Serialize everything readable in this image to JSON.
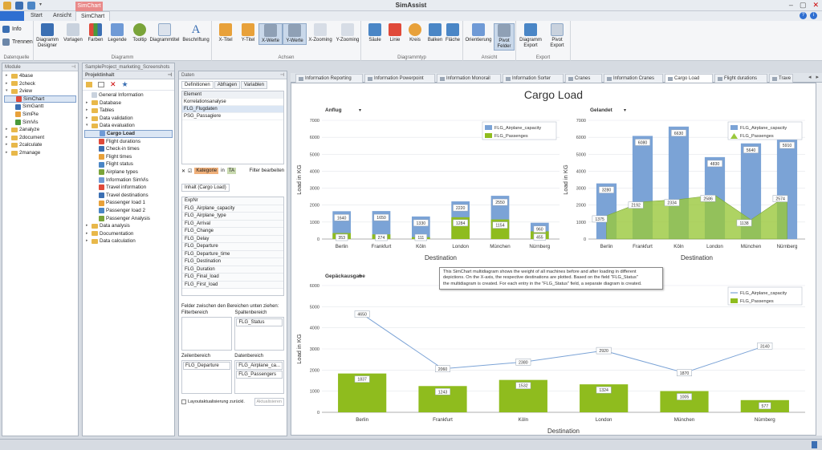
{
  "app": {
    "title": "SimAssist",
    "context_tab": "SimChart"
  },
  "tabs": [
    "Start",
    "Ansicht",
    "SimChart"
  ],
  "ribbon": {
    "groups": [
      {
        "label": "Datenquelle",
        "buttons": [
          "Info",
          "Trennen"
        ]
      },
      {
        "label": "Diagramm",
        "buttons": [
          "Diagramm Designer",
          "Vorlagen",
          "Farben",
          "Legende",
          "Tooltip",
          "Diagrammtitel",
          "Beschriftung"
        ]
      },
      {
        "label": "Achsen",
        "buttons": [
          "X-Titel",
          "Y-Titel",
          "X-Werte",
          "Y-Werte",
          "X-Zooming",
          "Y-Zooming"
        ]
      },
      {
        "label": "Diagrammtyp",
        "buttons": [
          "Säule",
          "Linie",
          "Kreis",
          "Balken",
          "Fläche"
        ]
      },
      {
        "label": "Ansicht",
        "buttons": [
          "Orientierung",
          "Pivot Felder"
        ]
      },
      {
        "label": "Export",
        "buttons": [
          "Diagramm Export",
          "Pivot Export"
        ]
      }
    ]
  },
  "module_panel": {
    "title": "Module",
    "items": [
      "4base",
      "2check",
      "2view",
      "SimChart",
      "SimGantt",
      "SimPie",
      "SimVis",
      "2analyze",
      "2document",
      "2calculate",
      "2manage"
    ]
  },
  "project_panel": {
    "header": "SampleProject_marketing_Screenshots",
    "title": "Projektinhalt",
    "items": [
      "General Information",
      "Database",
      "Tables",
      "Data validation",
      "Data evaluation",
      "Cargo Load",
      "Flight durations",
      "Check-in times",
      "Flight times",
      "Flight status",
      "Airplane types",
      "Information SimVis",
      "Travel information",
      "Travel destinations",
      "Passenger load 1",
      "Passenger load 2",
      "Passenger Analysis",
      "Data analysis",
      "Documentation",
      "Data calculation"
    ]
  },
  "data_panel": {
    "title": "Daten",
    "subtabs": [
      "Definitionen",
      "Abfragen",
      "Variablen"
    ],
    "element_header": "Element",
    "elements": [
      "Korrelationsanalyse",
      "FLG_Flugdaten",
      "PSG_Passagiere"
    ],
    "kategorie": "Kategorie",
    "in_label": "in",
    "filter_btn": "Filter bearbeiten",
    "inhalt_tab": "Inhalt (Cargo Load)",
    "fields": [
      "ExpNr",
      "FLG_Airplane_capacity",
      "FLG_Airplane_type",
      "FLG_Arrival",
      "FLG_Change",
      "FLG_Delay",
      "FLG_Departure",
      "FLG_Departure_time",
      "FLG_Destination",
      "FLG_Duration",
      "FLG_Final_load",
      "FLG_First_load"
    ],
    "drag_hint": "Felder zwischen den Bereichen unten ziehen:",
    "filterbereich": "Filterbereich",
    "spaltenbereich": "Spaltenbereich",
    "spalten_value": "FLG_Status",
    "zeilenbereich": "Zeilenbereich",
    "zeilen_value": "FLG_Departure",
    "datenbereich": "Datenbereich",
    "daten_values": [
      "FLG_Airplane_ca...",
      "FLG_Passengers"
    ],
    "layout_checkbox": "Layoutaktualisierung zurückl.",
    "aktualisieren": "Aktualisieren"
  },
  "doc_tabs": [
    "Information Reporting",
    "Information Powerpoint",
    "Information Monorail",
    "Information Sorter",
    "Cranes",
    "Information Cranes",
    "Cargo Load",
    "Flight durations",
    "Trave"
  ],
  "tooltip": {
    "lines": [
      "This SimChart multidiagram shows the weight of all machines before and after loading in different",
      "depictions. On the X-axis, the respective destinations are plotted. Based on the field \"FLG_Status\"",
      "the multidiagram is created. For each entry in the \"FLG_Status\" field, a separate diagram is created."
    ]
  },
  "chart_data": [
    {
      "type": "bar",
      "title": "Cargo Load",
      "subtitle": "Anflug",
      "xlabel": "Destination",
      "ylabel": "Load in KG",
      "ylim": [
        0,
        7000
      ],
      "categories": [
        "Berlin",
        "Frankfurt",
        "Köln",
        "London",
        "München",
        "Nürnberg"
      ],
      "series": [
        {
          "name": "FLG_Airplane_capacity",
          "values": [
            1640,
            1650,
            1330,
            2220,
            2550,
            960
          ],
          "color": "#7ba3d6"
        },
        {
          "name": "FLG_Passenges",
          "values": [
            353,
            274,
            111,
            1284,
            1154,
            455
          ],
          "color": "#8fbc1e"
        }
      ],
      "legend": "top-right"
    },
    {
      "type": "area",
      "subtitle": "Gelandet",
      "xlabel": "Destination",
      "ylabel": "Load in KG",
      "ylim": [
        0,
        7000
      ],
      "categories": [
        "Berlin",
        "Frankfurt",
        "Köln",
        "London",
        "München",
        "Nürnberg"
      ],
      "series": [
        {
          "name": "FLG_Airplane_capacity",
          "values": [
            3280,
            6080,
            6630,
            4830,
            5640,
            5910
          ],
          "color": "#7ba3d6"
        },
        {
          "name": "FLG_Passenges",
          "values": [
            1375,
            2192,
            2334,
            2586,
            1138,
            2574
          ],
          "color": "#9ac83c"
        }
      ],
      "legend": "top-right"
    },
    {
      "type": "line",
      "subtitle": "Gepäckausgabe",
      "xlabel": "Destination",
      "ylabel": "Load in KG",
      "ylim": [
        0,
        6000
      ],
      "categories": [
        "Berlin",
        "Frankfurt",
        "Köln",
        "London",
        "München",
        "Nürnberg"
      ],
      "series": [
        {
          "name": "FLG_Airplane_capacity",
          "values": [
            4650,
            2060,
            2380,
            2920,
            1870,
            3140
          ],
          "color": "#7ba3d6"
        },
        {
          "name": "FLG_Passenges",
          "values": [
            1837,
            1243,
            1532,
            1324,
            1005,
            577
          ],
          "color": "#8fbc1e"
        }
      ],
      "legend": "top-right"
    }
  ]
}
